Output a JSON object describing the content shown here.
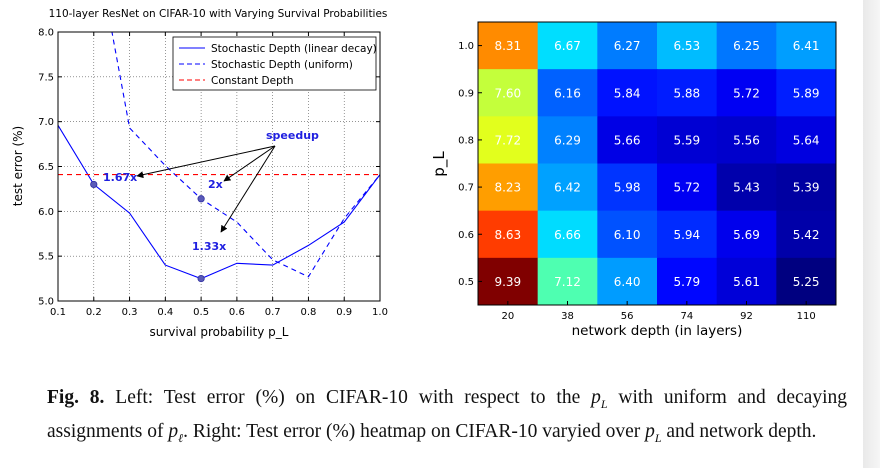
{
  "chart_data": [
    {
      "type": "line",
      "title": "110-layer ResNet on CIFAR-10 with Varying Survival Probabilities",
      "xlabel": "survival probability p_L",
      "ylabel": "test error (%)",
      "xlim": [
        0.1,
        1.0
      ],
      "ylim": [
        5.0,
        8.0
      ],
      "x_ticks": [
        "0.1",
        "0.2",
        "0.3",
        "0.4",
        "0.5",
        "0.6",
        "0.7",
        "0.8",
        "0.9",
        "1.0"
      ],
      "y_ticks": [
        "5.0",
        "5.5",
        "6.0",
        "6.5",
        "7.0",
        "7.5",
        "8.0"
      ],
      "grid": true,
      "legend_position": "top-right",
      "series": [
        {
          "name": "Stochastic Depth (linear decay)",
          "style": "solid",
          "color": "#0000ff",
          "x": [
            0.1,
            0.2,
            0.3,
            0.4,
            0.5,
            0.6,
            0.7,
            0.8,
            0.9,
            1.0
          ],
          "values": [
            6.96,
            6.3,
            5.98,
            5.4,
            5.25,
            5.42,
            5.4,
            5.62,
            5.88,
            6.41
          ]
        },
        {
          "name": "Stochastic Depth (uniform)",
          "style": "dashed",
          "color": "#0000ff",
          "x": [
            0.2,
            0.3,
            0.4,
            0.5,
            0.6,
            0.7,
            0.8,
            0.9,
            1.0
          ],
          "values": [
            9.1,
            6.93,
            6.51,
            6.14,
            5.88,
            5.46,
            5.27,
            5.92,
            6.41
          ]
        },
        {
          "name": "Constant Depth",
          "style": "dashed",
          "color": "#ff0000",
          "x": [
            0.1,
            1.0
          ],
          "values": [
            6.41,
            6.41
          ]
        }
      ],
      "annotations": [
        {
          "text": "1.67x",
          "x": 0.2,
          "y": 6.3
        },
        {
          "text": "2x",
          "x": 0.5,
          "y": 6.14
        },
        {
          "text": "1.33x",
          "x": 0.5,
          "y": 5.25
        },
        {
          "text": "speedup"
        }
      ],
      "annotation_color": "#2020e0"
    },
    {
      "type": "heatmap",
      "xlabel": "network depth (in layers)",
      "ylabel": "p_L",
      "x_categories": [
        "20",
        "38",
        "56",
        "74",
        "92",
        "110"
      ],
      "y_categories": [
        "1.0",
        "0.9",
        "0.8",
        "0.7",
        "0.6",
        "0.5"
      ],
      "values": [
        [
          8.31,
          6.67,
          6.27,
          6.53,
          6.25,
          6.41
        ],
        [
          7.6,
          6.16,
          5.84,
          5.88,
          5.72,
          5.89
        ],
        [
          7.72,
          6.29,
          5.66,
          5.59,
          5.56,
          5.64
        ],
        [
          8.23,
          6.42,
          5.98,
          5.72,
          5.43,
          5.39
        ],
        [
          8.63,
          6.66,
          6.1,
          5.94,
          5.69,
          5.42
        ],
        [
          9.39,
          7.12,
          6.4,
          5.79,
          5.61,
          5.25
        ]
      ],
      "colormap": "jet",
      "color_range": [
        5.25,
        9.39
      ]
    }
  ],
  "caption": {
    "label": "Fig. 8.",
    "t1": " Left: Test error (%) on CIFAR-10 with respect to the ",
    "m1": "p",
    "m1_sub": "L",
    "t2": " with uniform and decaying assignments of ",
    "m2": "p",
    "m2_sub": "ℓ",
    "t3": ". Right: Test error (%) heatmap on CIFAR-10 varyied over ",
    "m3": "p",
    "m3_sub": "L",
    "t4": " and network depth."
  }
}
